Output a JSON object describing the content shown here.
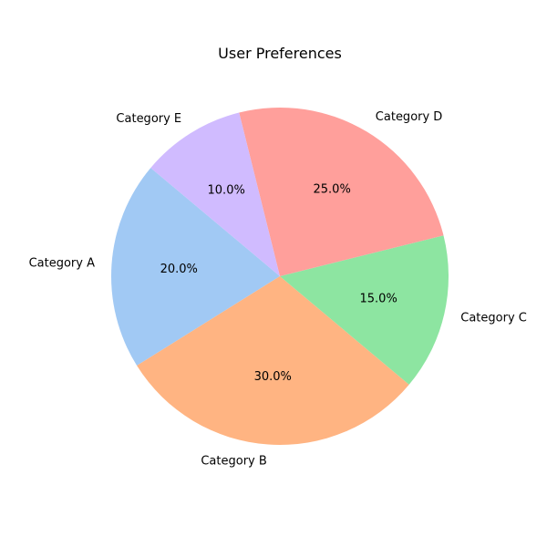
{
  "chart_data": {
    "type": "pie",
    "title": "User Preferences",
    "categories": [
      "Category A",
      "Category B",
      "Category C",
      "Category D",
      "Category E"
    ],
    "values": [
      20,
      30,
      15,
      25,
      10
    ],
    "percent_labels": [
      "20.0%",
      "30.0%",
      "15.0%",
      "25.0%",
      "10.0%"
    ],
    "colors": [
      "#a1c9f4",
      "#ffb482",
      "#8de5a1",
      "#ff9f9b",
      "#d0bbff"
    ],
    "start_angle_deg": 140,
    "direction": "counterclockwise",
    "legend": "none"
  }
}
